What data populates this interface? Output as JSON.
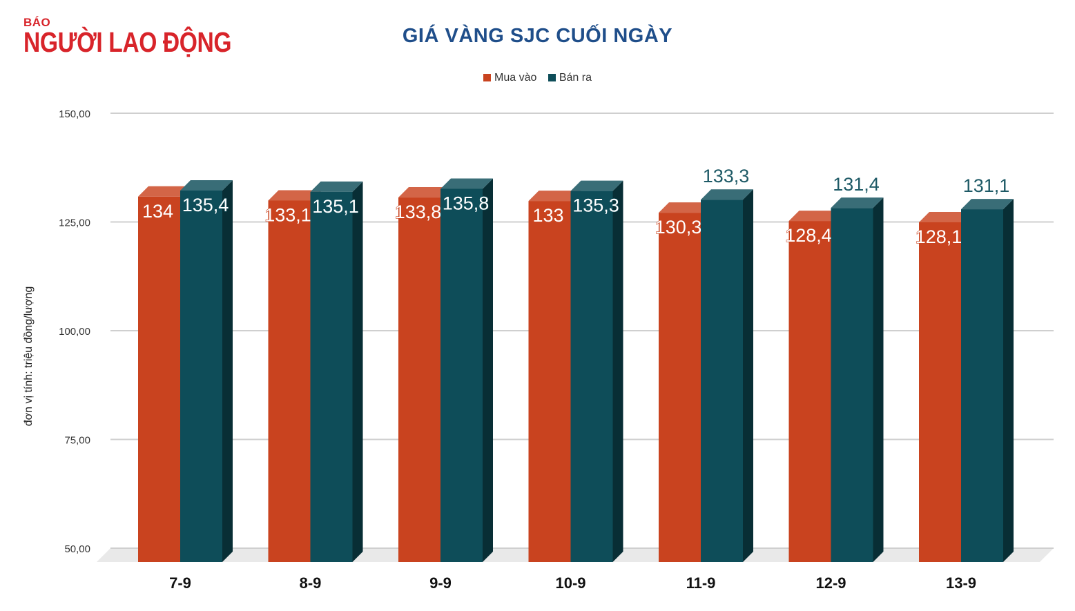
{
  "brand": {
    "small": "BÁO",
    "name": "NGƯỜI LAO ĐỘNG"
  },
  "colors": {
    "brand": "#d8242a",
    "title": "#1f4e8a",
    "buy": "#c9431f",
    "sell": "#0e4d59"
  },
  "chart_data": {
    "type": "bar",
    "title": "GIÁ VÀNG SJC CUỐI NGÀY",
    "ylabel": "đơn vị tính: triệu đồng/lượng",
    "xlabel": "",
    "ylim": [
      50,
      150
    ],
    "yticks": [
      "50,00",
      "75,00",
      "100,00",
      "125,00",
      "150,00"
    ],
    "categories": [
      "7-9",
      "8-9",
      "9-9",
      "10-9",
      "11-9",
      "12-9",
      "13-9"
    ],
    "legend_position": "top-center",
    "grid": true,
    "series": [
      {
        "name": "Mua vào",
        "values": [
          134,
          133.1,
          133.8,
          133,
          130.3,
          128.4,
          128.1
        ],
        "labels": [
          "134",
          "133,1",
          "133,8",
          "133",
          "130,3",
          "128,4",
          "128,1"
        ]
      },
      {
        "name": "Bán ra",
        "values": [
          135.4,
          135.1,
          135.8,
          135.3,
          133.3,
          131.4,
          131.1
        ],
        "labels": [
          "135,4",
          "135,1",
          "135,8",
          "135,3",
          "133,3",
          "131,4",
          "131,1"
        ]
      }
    ]
  }
}
